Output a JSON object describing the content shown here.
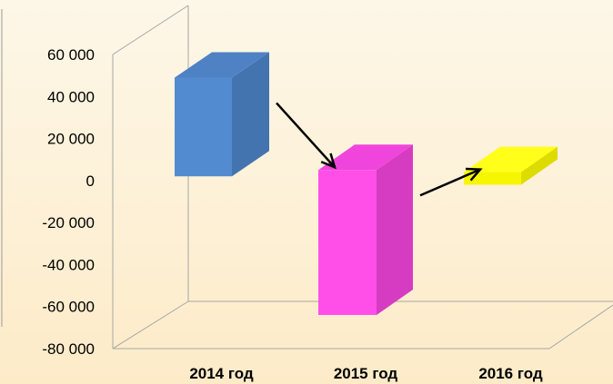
{
  "chart_data": {
    "type": "bar",
    "title": "",
    "xlabel": "",
    "ylabel": "",
    "categories": [
      "2014 год",
      "2015 год",
      "2016 год"
    ],
    "ranges": [
      {
        "from": 2000,
        "to": 49000
      },
      {
        "from": -64000,
        "to": 5000
      },
      {
        "from": -2000,
        "to": 4000
      }
    ],
    "yticks": [
      60000,
      40000,
      20000,
      0,
      -20000,
      -40000,
      -60000,
      -80000
    ],
    "ytick_labels": [
      "60 000",
      "40 000",
      "20 000",
      "0",
      "-20 000",
      "-40 000",
      "-60 000",
      "-80 000"
    ],
    "ylim": [
      -80000,
      60000
    ],
    "grid": false,
    "legend": "none",
    "arrows": [
      [
        "2014 год",
        "2015 год"
      ],
      [
        "2015 год",
        "2016 год"
      ]
    ],
    "colors": {
      "2014 год": {
        "front": "#538bd0",
        "side": "#4474b0",
        "top": "#4f82c4"
      },
      "2015 год": {
        "front": "#ff4fe8",
        "side": "#d63cc1",
        "top": "#f045dc"
      },
      "2016 год": {
        "front": "#f6f600",
        "side": "#dcdc00",
        "top": "#ffff1a"
      }
    }
  }
}
